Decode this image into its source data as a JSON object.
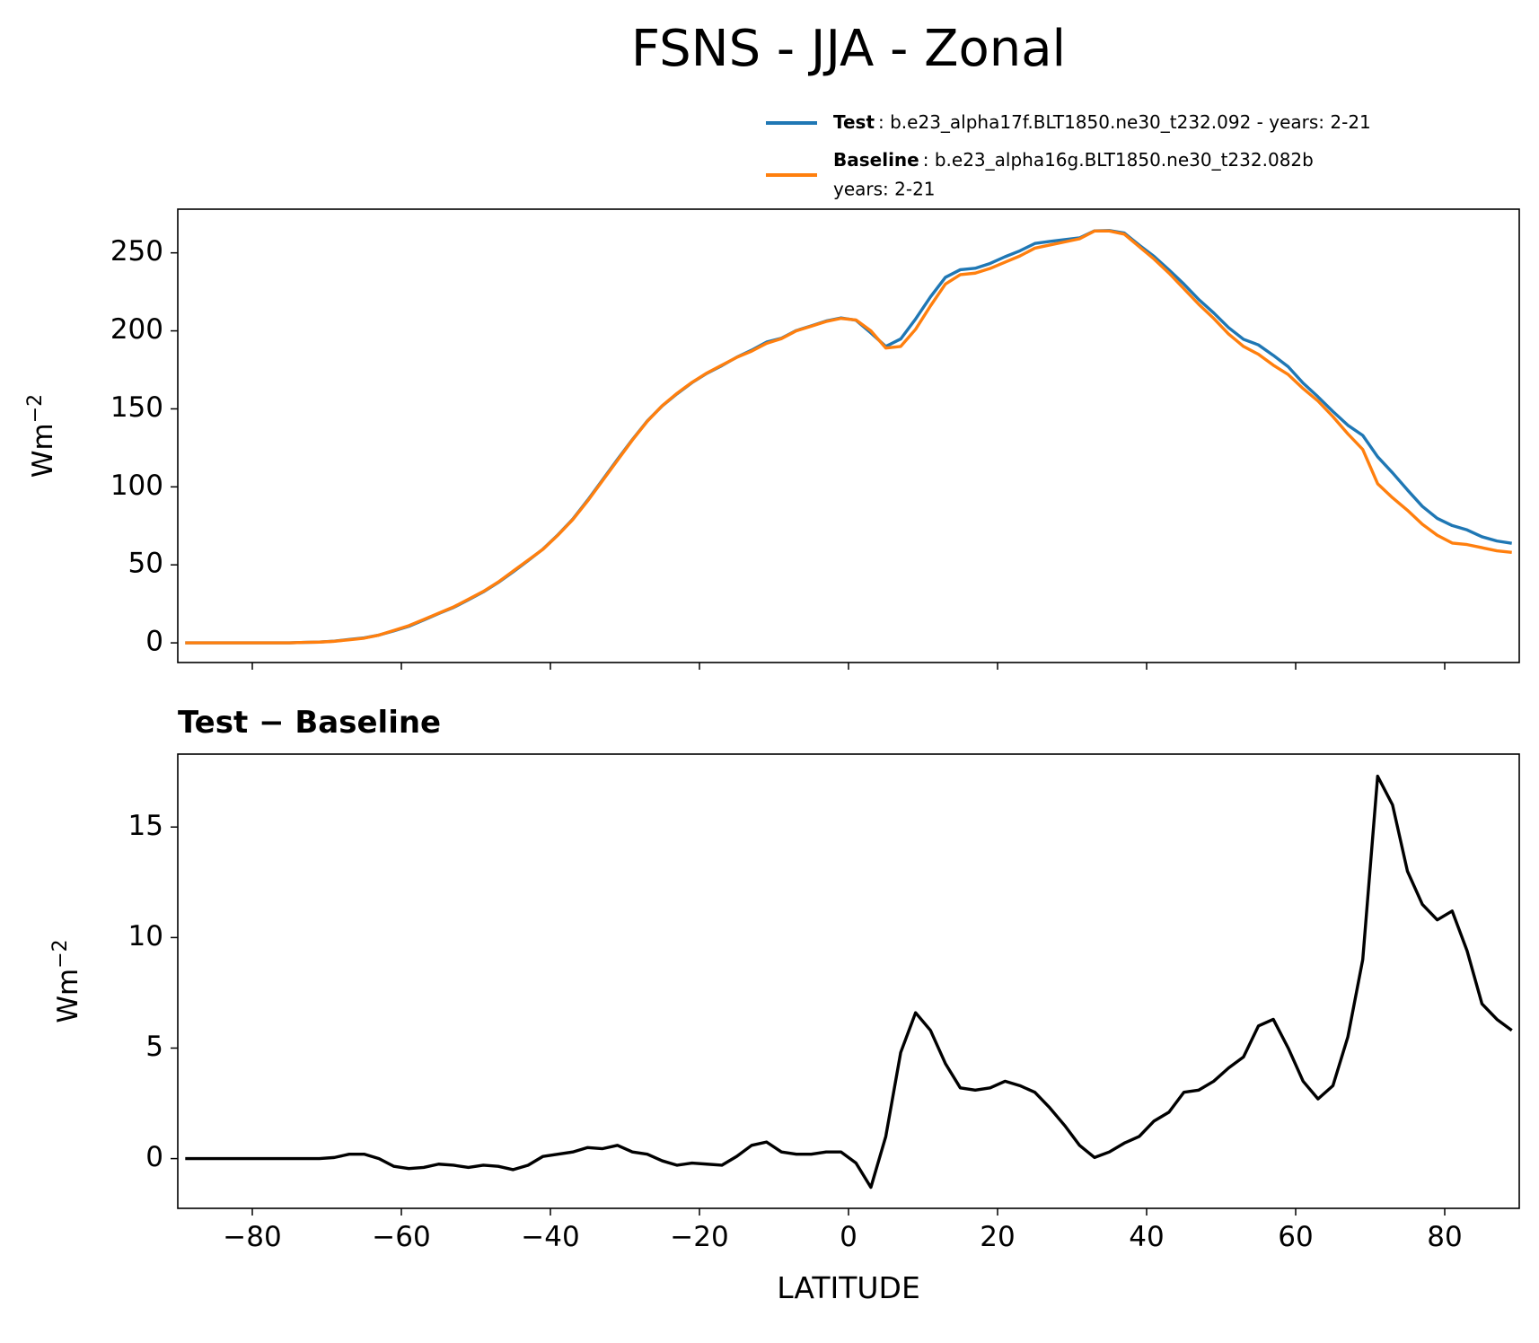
{
  "title": "FSNS - JJA - Zonal",
  "chart_data": [
    {
      "type": "line",
      "ylabel": "Wm",
      "ylabel_sup": "−2",
      "x": [
        -89,
        -87,
        -85,
        -83,
        -81,
        -79,
        -77,
        -75,
        -73,
        -71,
        -69,
        -67,
        -65,
        -63,
        -61,
        -59,
        -57,
        -55,
        -53,
        -51,
        -49,
        -47,
        -45,
        -43,
        -41,
        -39,
        -37,
        -35,
        -33,
        -31,
        -29,
        -27,
        -25,
        -23,
        -21,
        -19,
        -17,
        -15,
        -13,
        -11,
        -9,
        -7,
        -5,
        -3,
        -1,
        1,
        3,
        5,
        7,
        9,
        11,
        13,
        15,
        17,
        19,
        21,
        23,
        25,
        27,
        29,
        31,
        33,
        35,
        37,
        39,
        41,
        43,
        45,
        47,
        49,
        51,
        53,
        55,
        57,
        59,
        61,
        63,
        65,
        67,
        69,
        71,
        73,
        75,
        77,
        79,
        81,
        83,
        85,
        87,
        89
      ],
      "series": [
        {
          "name": "Test",
          "description": [
            ": b.e23_alpha17f.BLT1850.ne30_t232.092 - years: 2-21"
          ],
          "color": "#1f77b4",
          "values": [
            0,
            0,
            0,
            0,
            0,
            0,
            0,
            0,
            0.3,
            0.5,
            1.1,
            2.2,
            3.2,
            5,
            7.7,
            10.6,
            14.6,
            18.8,
            22.7,
            27.6,
            32.7,
            38.7,
            45.5,
            52.7,
            60.1,
            69.2,
            79.3,
            91.5,
            104.5,
            117.6,
            130.3,
            142.2,
            151.9,
            159.7,
            166.8,
            172.8,
            177.7,
            183.1,
            187.6,
            192.8,
            195.3,
            200.2,
            203.2,
            206.3,
            208.3,
            206.8,
            198.7,
            190,
            194.8,
            207.6,
            221.8,
            234.3,
            239.2,
            240.1,
            243.2,
            247.5,
            251.3,
            256,
            257.3,
            258.5,
            259.6,
            264.1,
            264.3,
            262.7,
            255,
            247.7,
            239.1,
            230,
            220.1,
            211.5,
            202.1,
            194.6,
            191,
            184.3,
            177,
            166.5,
            157.7,
            148.3,
            139.5,
            133,
            119.3,
            109,
            98,
            87.5,
            79.8,
            75.2,
            72.4,
            68,
            65.3,
            63.8
          ]
        },
        {
          "name": "Baseline",
          "description": [
            ": b.e23_alpha16g.BLT1850.ne30_t232.082b",
            "years: 2-21"
          ],
          "color": "#ff7f0e",
          "values": [
            0,
            0,
            0,
            0,
            0,
            0,
            0,
            0,
            0.3,
            0.5,
            1,
            2,
            3,
            5,
            8,
            11,
            15,
            19,
            23,
            28,
            33,
            39,
            46,
            53,
            60,
            69,
            79,
            91,
            104,
            117,
            130,
            142,
            152,
            160,
            167,
            173,
            178,
            183,
            187,
            192,
            195,
            200,
            203,
            206,
            208,
            207,
            200,
            189,
            190,
            201,
            216,
            230,
            236,
            237,
            240,
            244,
            248,
            253,
            255,
            257,
            259,
            264,
            264,
            262,
            254,
            246,
            237,
            227,
            217,
            208,
            198,
            190,
            185,
            178,
            172,
            163,
            155,
            145,
            134,
            124,
            102,
            93,
            85,
            76,
            69,
            64,
            63,
            61,
            59,
            58
          ]
        }
      ],
      "xlim": [
        -90,
        90
      ],
      "ylim": [
        -12.6,
        278
      ],
      "xticks": [
        -80,
        -60,
        -40,
        -20,
        0,
        20,
        40,
        60,
        80
      ],
      "xtick_labels": false,
      "yticks": [
        0,
        50,
        100,
        150,
        200,
        250
      ]
    },
    {
      "type": "line",
      "title": "Test − Baseline",
      "xlabel": "LATITUDE",
      "ylabel": "Wm",
      "ylabel_sup": "−2",
      "x": [
        -89,
        -87,
        -85,
        -83,
        -81,
        -79,
        -77,
        -75,
        -73,
        -71,
        -69,
        -67,
        -65,
        -63,
        -61,
        -59,
        -57,
        -55,
        -53,
        -51,
        -49,
        -47,
        -45,
        -43,
        -41,
        -39,
        -37,
        -35,
        -33,
        -31,
        -29,
        -27,
        -25,
        -23,
        -21,
        -19,
        -17,
        -15,
        -13,
        -11,
        -9,
        -7,
        -5,
        -3,
        -1,
        1,
        3,
        5,
        7,
        9,
        11,
        13,
        15,
        17,
        19,
        21,
        23,
        25,
        27,
        29,
        31,
        33,
        35,
        37,
        39,
        41,
        43,
        45,
        47,
        49,
        51,
        53,
        55,
        57,
        59,
        61,
        63,
        65,
        67,
        69,
        71,
        73,
        75,
        77,
        79,
        81,
        83,
        85,
        87,
        89
      ],
      "series": [
        {
          "color": "#000000",
          "values": [
            0,
            0,
            0,
            0,
            0,
            0,
            0,
            0,
            0,
            0,
            0.05,
            0.2,
            0.2,
            0,
            -0.35,
            -0.45,
            -0.4,
            -0.25,
            -0.3,
            -0.4,
            -0.3,
            -0.35,
            -0.5,
            -0.3,
            0.1,
            0.2,
            0.3,
            0.5,
            0.45,
            0.6,
            0.3,
            0.2,
            -0.1,
            -0.3,
            -0.2,
            -0.25,
            -0.3,
            0.1,
            0.6,
            0.75,
            0.3,
            0.2,
            0.2,
            0.3,
            0.3,
            -0.2,
            -1.3,
            1,
            4.8,
            6.6,
            5.8,
            4.3,
            3.2,
            3.1,
            3.2,
            3.5,
            3.3,
            3,
            2.3,
            1.5,
            0.6,
            0.05,
            0.3,
            0.7,
            1,
            1.7,
            2.1,
            3,
            3.1,
            3.5,
            4.1,
            4.6,
            6,
            6.3,
            5,
            3.5,
            2.7,
            3.3,
            5.5,
            9,
            17.3,
            16,
            13,
            11.5,
            10.8,
            11.2,
            9.4,
            7,
            6.3,
            5.8
          ]
        }
      ],
      "xlim": [
        -90,
        90
      ],
      "ylim": [
        -2.25,
        18.3
      ],
      "xticks": [
        {
          "value": -80,
          "label": "−80"
        },
        {
          "value": -60,
          "label": "−60"
        },
        {
          "value": -40,
          "label": "−40"
        },
        {
          "value": -20,
          "label": "−20"
        },
        0,
        20,
        40,
        60,
        80
      ],
      "yticks": [
        0,
        5,
        10,
        15
      ]
    }
  ]
}
